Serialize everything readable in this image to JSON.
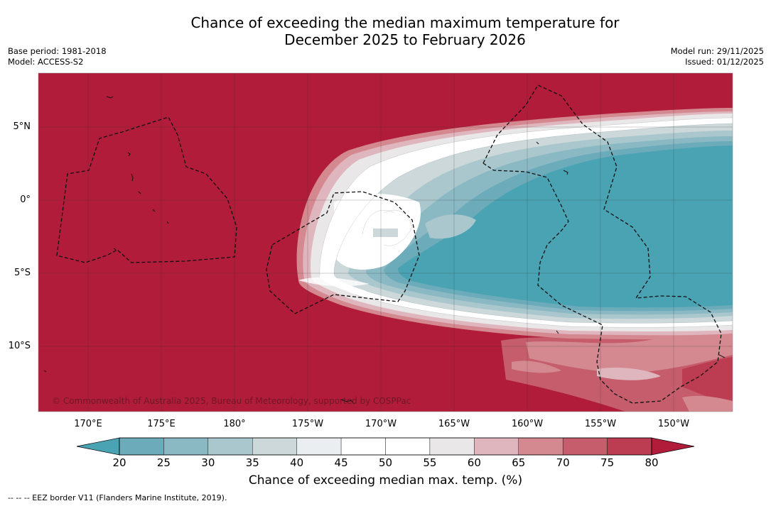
{
  "title": {
    "line1": "Chance of exceeding the median maximum temperature for",
    "line2": "December 2025 to February 2026"
  },
  "meta_left": {
    "base_period": "Base period: 1981-2018",
    "model": "Model: ACCESS-S2"
  },
  "meta_right": {
    "model_run": "Model run: 29/11/2025",
    "issued": "Issued: 01/12/2025"
  },
  "map": {
    "lat_labels": [
      "5°N",
      "0°",
      "5°S",
      "10°S"
    ],
    "lon_labels": [
      "170°E",
      "175°E",
      "180°",
      "175°W",
      "170°W",
      "165°W",
      "160°W",
      "155°W",
      "150°W"
    ],
    "copyright": "© Commonwealth of Australia 2025, Bureau of Meteorology, supported by COSPPac"
  },
  "colorbar": {
    "ticks": [
      "20",
      "25",
      "30",
      "35",
      "40",
      "45",
      "50",
      "55",
      "60",
      "65",
      "70",
      "75",
      "80"
    ],
    "colors": [
      "#4aa3b3",
      "#6cabb9",
      "#8ab8c3",
      "#a9c7cc",
      "#ccd8da",
      "#eaeef0",
      "#ffffff",
      "#ffffff",
      "#e9e7e8",
      "#dfb6bd",
      "#d48991",
      "#c65d6c",
      "#bc3c51",
      "#b01c3a"
    ],
    "title": "Chance of exceeding median max. temp. (%)"
  },
  "footnote": "--  --  -- EEZ border V11 (Flanders Marine Institute, 2019).",
  "palette": {
    "warm": "#b01c3a",
    "cool": "#4aa3b3",
    "neutral": "#ffffff"
  }
}
